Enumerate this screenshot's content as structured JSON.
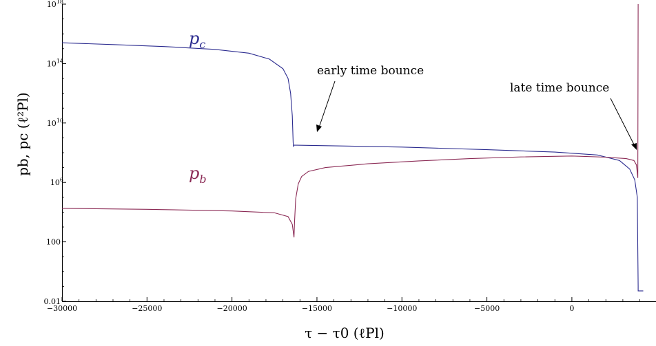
{
  "chart_data": {
    "type": "line",
    "title": "",
    "xlabel": "τ − τ0 (ℓPl)",
    "ylabel": "pb, pc (ℓ²Pl)",
    "xlim": [
      -30000,
      4950
    ],
    "ylim": [
      0.01,
      1e+18
    ],
    "y_scale": "log",
    "grid": false,
    "x_ticks": [
      -30000,
      -25000,
      -20000,
      -15000,
      -10000,
      -5000,
      0
    ],
    "x_tick_labels": [
      "−30000",
      "−25000",
      "−20000",
      "−15000",
      "−10000",
      "−5000",
      "0"
    ],
    "y_ticks": [
      {
        "value": 0.01,
        "base": "0.01",
        "exp": ""
      },
      {
        "value": 100,
        "base": "100",
        "exp": ""
      },
      {
        "value": 1000000,
        "base": "10",
        "exp": "6"
      },
      {
        "value": 10000000000,
        "base": "10",
        "exp": "10"
      },
      {
        "value": 100000000000000,
        "base": "10",
        "exp": "14"
      },
      {
        "value": 1e+18,
        "base": "10",
        "exp": "18"
      }
    ],
    "series": [
      {
        "name": "pc",
        "label_main": "p",
        "label_sub": "c",
        "color": "#2b2b8f",
        "points": [
          [
            -30000,
            2500000000000000.0
          ],
          [
            -27000,
            1900000000000000.0
          ],
          [
            -24000,
            1400000000000000.0
          ],
          [
            -21000,
            900000000000000.0
          ],
          [
            -19000,
            500000000000000.0
          ],
          [
            -17800,
            200000000000000.0
          ],
          [
            -17000,
            45000000000000.0
          ],
          [
            -16700,
            10000000000000.0
          ],
          [
            -16550,
            1000000000000.0
          ],
          [
            -16450,
            30000000000.0
          ],
          [
            -16400,
            500000000.0
          ],
          [
            -16380,
            250000000.0
          ],
          [
            -16380,
            250000000.0
          ],
          [
            -16370,
            320000000.0
          ],
          [
            -16200,
            320000000.0
          ],
          [
            -10000,
            240000000.0
          ],
          [
            -5000,
            160000000.0
          ],
          [
            -1000,
            110000000.0
          ],
          [
            1500,
            70000000.0
          ],
          [
            2800,
            30000000.0
          ],
          [
            3400,
            8000000.0
          ],
          [
            3700,
            1500000.0
          ],
          [
            3850,
            100000.0
          ],
          [
            3900,
            0.1
          ],
          [
            3900,
            0.05
          ],
          [
            4200,
            0.05
          ]
        ]
      },
      {
        "name": "pb",
        "label_main": "p",
        "label_sub": "b",
        "color": "#8b2a55",
        "points": [
          [
            -30000,
            18000
          ],
          [
            -25000,
            15500
          ],
          [
            -20000,
            12000
          ],
          [
            -17500,
            9000
          ],
          [
            -16700,
            5000
          ],
          [
            -16450,
            1500
          ],
          [
            -16350,
            200
          ],
          [
            -16320,
            2000
          ],
          [
            -16250,
            80000.0
          ],
          [
            -16100,
            800000.0
          ],
          [
            -15900,
            2500000.0
          ],
          [
            -15500,
            5500000.0
          ],
          [
            -14500,
            10000000.0
          ],
          [
            -12000,
            18000000.0
          ],
          [
            -9000,
            28000000.0
          ],
          [
            -6000,
            40000000.0
          ],
          [
            -3000,
            52000000.0
          ],
          [
            0,
            60000000.0
          ],
          [
            2000,
            50000000.0
          ],
          [
            3200,
            40000000.0
          ],
          [
            3650,
            30000000.0
          ],
          [
            3800,
            15000000.0
          ],
          [
            3880,
            2000000.0
          ],
          [
            3900,
            1.8e+18
          ]
        ]
      }
    ],
    "annotations": [
      {
        "text": "early time bounce",
        "x": -16000,
        "y": 20000000000.0
      },
      {
        "text": "late time bounce",
        "x": 3700,
        "y": 500000000.0
      }
    ]
  }
}
